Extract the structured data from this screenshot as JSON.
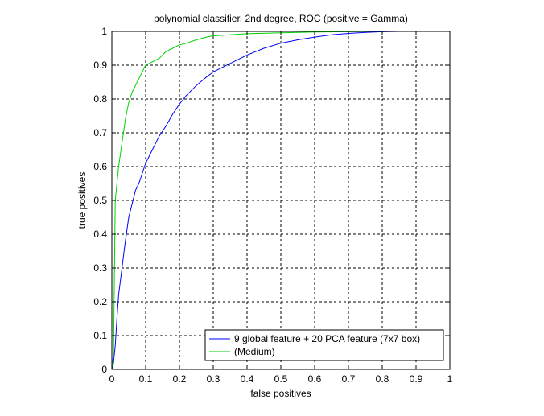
{
  "chart_data": {
    "type": "line",
    "title": "polynomial classifier, 2nd degree, ROC (positive = Gamma)",
    "xlabel": "false positives",
    "ylabel": "true positives",
    "xlim": [
      0,
      1
    ],
    "ylim": [
      0,
      1
    ],
    "grid": true,
    "legend_position": "bottom-right",
    "xticks": [
      "0",
      "0.1",
      "0.2",
      "0.3",
      "0.4",
      "0.5",
      "0.6",
      "0.7",
      "0.8",
      "0.9",
      "1"
    ],
    "yticks": [
      "0",
      "0.1",
      "0.2",
      "0.3",
      "0.4",
      "0.5",
      "0.6",
      "0.7",
      "0.8",
      "0.9",
      "1"
    ],
    "series": [
      {
        "name": "9 global feature + 20 PCA feature (7x7 box)",
        "color": "#0000ff",
        "x": [
          0,
          0.005,
          0.01,
          0.015,
          0.02,
          0.03,
          0.04,
          0.05,
          0.06,
          0.07,
          0.08,
          0.09,
          0.1,
          0.12,
          0.14,
          0.16,
          0.18,
          0.2,
          0.22,
          0.25,
          0.28,
          0.3,
          0.33,
          0.36,
          0.4,
          0.45,
          0.5,
          0.55,
          0.6,
          0.65,
          0.7,
          0.75,
          0.8,
          0.85,
          0.88,
          0.9,
          1.0
        ],
        "y": [
          0,
          0.02,
          0.07,
          0.15,
          0.22,
          0.3,
          0.38,
          0.45,
          0.49,
          0.53,
          0.55,
          0.58,
          0.61,
          0.65,
          0.69,
          0.72,
          0.755,
          0.785,
          0.81,
          0.84,
          0.865,
          0.88,
          0.895,
          0.91,
          0.93,
          0.95,
          0.965,
          0.975,
          0.983,
          0.99,
          0.994,
          0.997,
          0.999,
          1.0,
          1.0,
          1.0,
          1.0
        ]
      },
      {
        "name": "(Medium)",
        "color": "#00d200",
        "x": [
          0,
          0.005,
          0.01,
          0.015,
          0.02,
          0.03,
          0.04,
          0.05,
          0.06,
          0.07,
          0.08,
          0.09,
          0.1,
          0.11,
          0.12,
          0.14,
          0.16,
          0.18,
          0.2,
          0.22,
          0.25,
          0.28,
          0.3,
          0.35,
          0.4,
          0.5,
          0.6,
          0.7,
          0.8,
          0.9,
          1.0
        ],
        "y": [
          0,
          0.05,
          0.5,
          0.55,
          0.6,
          0.67,
          0.74,
          0.79,
          0.82,
          0.84,
          0.86,
          0.88,
          0.9,
          0.905,
          0.91,
          0.92,
          0.94,
          0.95,
          0.96,
          0.965,
          0.975,
          0.983,
          0.987,
          0.99,
          0.993,
          0.996,
          0.998,
          0.999,
          1.0,
          1.0,
          1.0
        ]
      }
    ]
  }
}
